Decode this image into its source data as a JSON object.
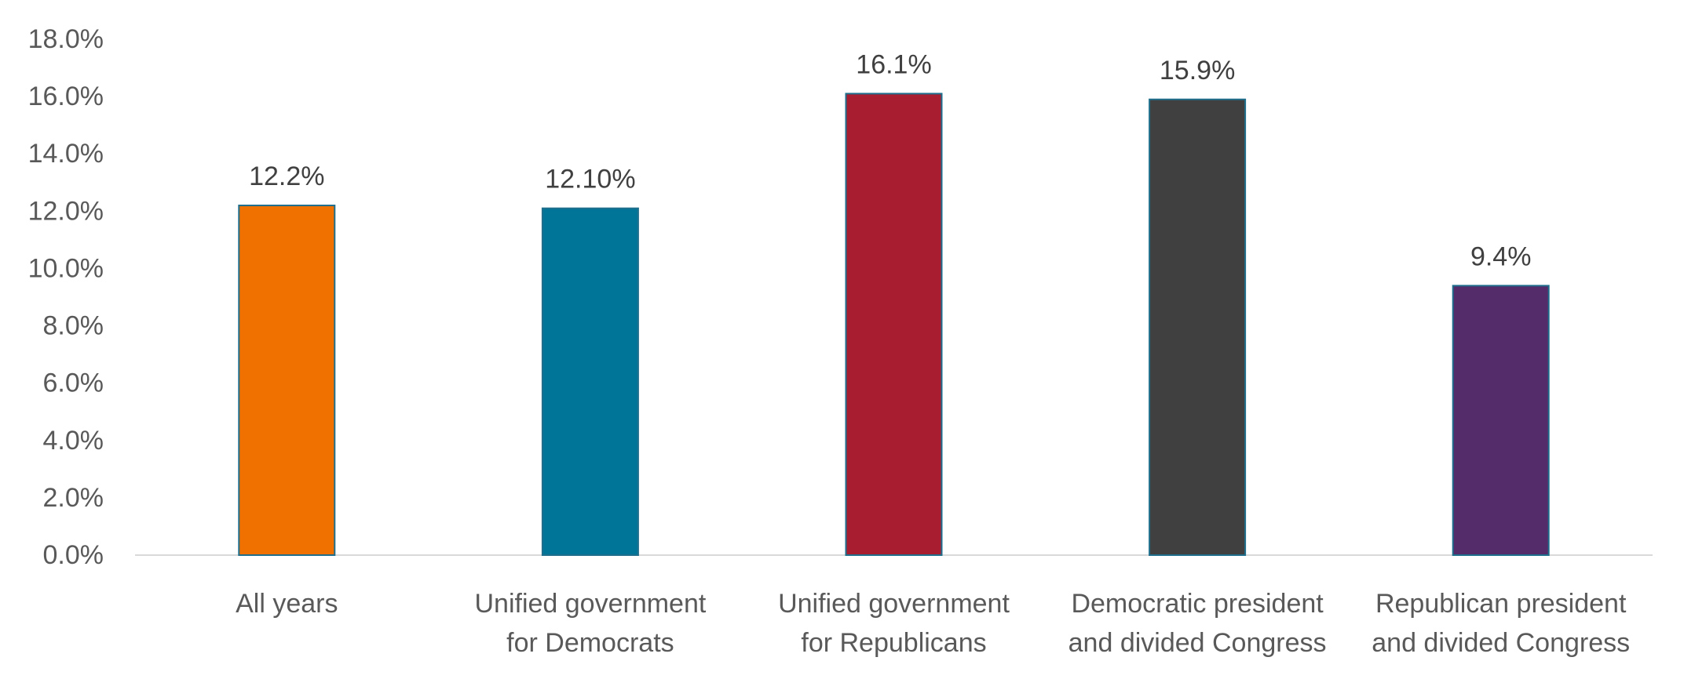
{
  "chart_data": {
    "type": "bar",
    "categories": [
      [
        "All years"
      ],
      [
        "Unified government",
        "for Democrats"
      ],
      [
        "Unified government",
        "for Republicans"
      ],
      [
        "Democratic president",
        "and divided Congress"
      ],
      [
        "Republican president",
        "and divided Congress"
      ]
    ],
    "values": [
      12.2,
      12.1,
      16.1,
      15.9,
      9.4
    ],
    "data_labels": [
      "12.2%",
      "12.10%",
      "16.1%",
      "15.9%",
      "9.4%"
    ],
    "colors": [
      "#F07000",
      "#007597",
      "#A91D30",
      "#404040",
      "#542C69"
    ],
    "bar_outline_color": "#1F6E8C",
    "ylim": [
      0,
      18
    ],
    "yticks": [
      0,
      2,
      4,
      6,
      8,
      10,
      12,
      14,
      16,
      18
    ],
    "ytick_labels": [
      "0.0%",
      "2.0%",
      "4.0%",
      "6.0%",
      "8.0%",
      "10.0%",
      "12.0%",
      "14.0%",
      "16.0%",
      "18.0%"
    ],
    "title": "",
    "xlabel": "",
    "ylabel": "",
    "grid": false,
    "legend": "none"
  }
}
